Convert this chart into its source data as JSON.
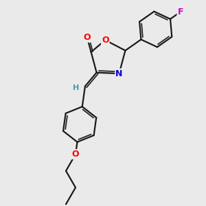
{
  "background_color": "#eaeaea",
  "bond_color": "#1a1a1a",
  "atom_colors": {
    "O": "#ff0000",
    "N": "#0000cc",
    "F": "#cc00cc",
    "H": "#4a9898",
    "C": "#1a1a1a"
  },
  "figsize": [
    3.0,
    3.0
  ],
  "dpi": 100
}
